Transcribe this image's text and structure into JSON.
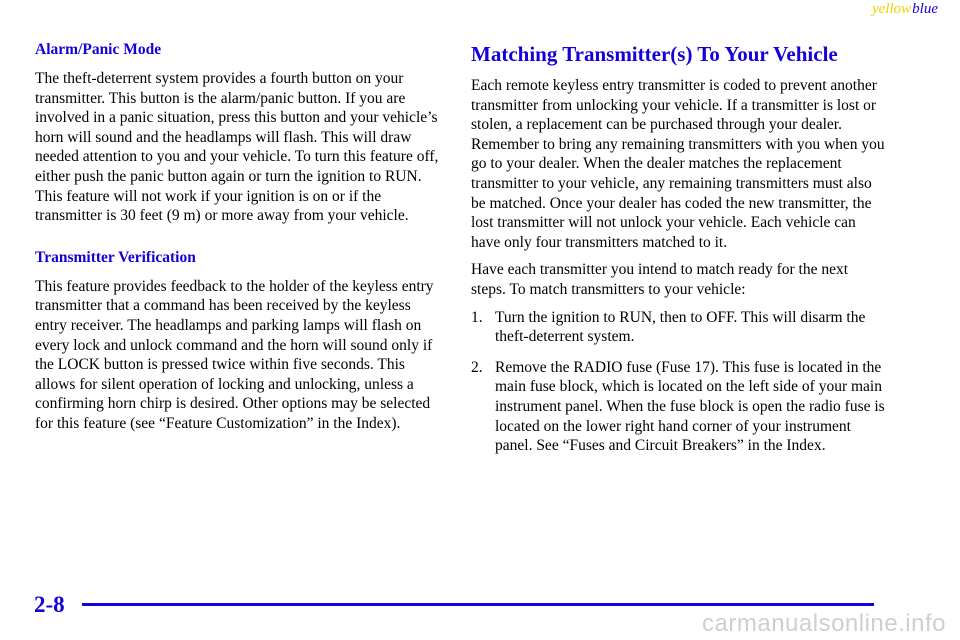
{
  "header_tag": {
    "yellow": "yellow",
    "blue": "blue"
  },
  "left": {
    "alarm_heading": "Alarm/Panic Mode",
    "alarm_text": "The theft-deterrent system provides a fourth button on your transmitter. This button is the alarm/panic button. If you are involved in a panic situation, press this button and your vehicle’s horn will sound and the headlamps will flash. This will draw needed attention to you and your vehicle. To turn this feature off, either push the panic button again or turn the ignition to RUN. This feature will not work if your ignition is on or if the transmitter is 30 feet (9 m) or more away from your vehicle.",
    "verification_heading": "Transmitter Verification",
    "verification_text": "This feature provides feedback to the holder of the keyless entry transmitter that a command has been received by the keyless entry receiver. The headlamps and parking lamps will flash on every lock and unlock command and the horn will sound only if the LOCK button is pressed twice within five seconds. This allows for silent operation of locking and unlocking, unless a confirming horn chirp is desired. Other options may be selected for this feature (see “Feature Customization” in the Index)."
  },
  "right": {
    "heading": "Matching Transmitter(s) To Your Vehicle",
    "para1": "Each remote keyless entry transmitter is coded to prevent another transmitter from unlocking your vehicle. If a transmitter is lost or stolen, a replacement can be purchased through your dealer. Remember to bring any remaining transmitters with you when you go to your dealer. When the dealer matches the replacement transmitter to your vehicle, any remaining transmitters must also be matched. Once your dealer has coded the new transmitter, the lost transmitter will not unlock your vehicle. Each vehicle can have only four transmitters matched to it.",
    "para2": "Have each transmitter you intend to match ready for the next steps. To match transmitters to your vehicle:",
    "steps": [
      {
        "num": "1.",
        "text": "Turn the ignition to RUN, then to OFF. This will disarm the theft-deterrent system."
      },
      {
        "num": "2.",
        "text": "Remove the RADIO fuse (Fuse 17). This fuse is located in the main fuse block, which is located on the left side of your main instrument panel. When the fuse block is open the radio fuse is located on the lower right hand corner of your instrument panel. See “Fuses and Circuit Breakers” in the Index."
      }
    ]
  },
  "footer": {
    "page_number": "2-8",
    "watermark": "carmanualsonline.info"
  },
  "colors": {
    "accent": "#1400d9",
    "yellow": "#f2d100"
  }
}
